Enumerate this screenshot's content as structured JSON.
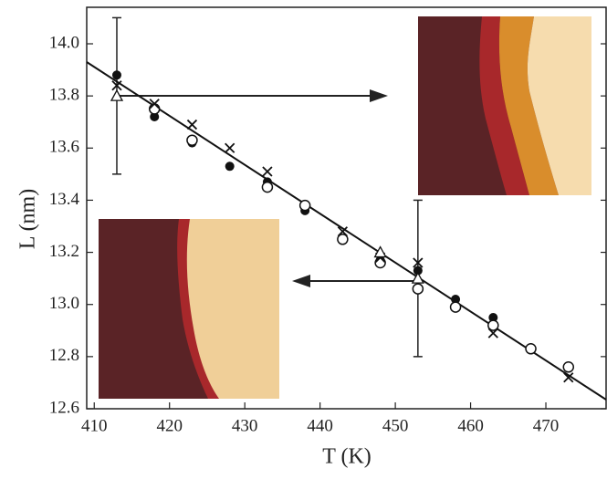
{
  "chart_data": {
    "type": "scatter",
    "x_label": "T (K)",
    "y_label": "L (nm)",
    "xlim": [
      409,
      478
    ],
    "ylim": [
      12.6,
      14.14
    ],
    "xticks": [
      410,
      420,
      430,
      440,
      450,
      460,
      470
    ],
    "yticks": [
      12.6,
      12.8,
      {
        "value": 13,
        "label": "13.0"
      },
      13.2,
      13.4,
      13.6,
      13.8,
      {
        "value": 14,
        "label": "14.0"
      }
    ],
    "series": [
      {
        "marker": "line",
        "color": "#111",
        "x": [
          409,
          478
        ],
        "values": [
          13.93,
          12.635
        ]
      },
      {
        "marker": "filled-circle",
        "color": "#111",
        "x": [
          413,
          418,
          423,
          428,
          433,
          438,
          443,
          448,
          453,
          458,
          463
        ],
        "values": [
          13.88,
          13.72,
          13.62,
          13.53,
          13.47,
          13.36,
          13.25,
          13.17,
          13.13,
          13.02,
          12.95
        ]
      },
      {
        "marker": "open-circle",
        "color": "#111",
        "x": [
          418,
          423,
          433,
          438,
          443,
          448,
          453,
          458,
          463,
          468,
          473
        ],
        "values": [
          13.75,
          13.63,
          13.45,
          13.38,
          13.25,
          13.16,
          13.06,
          12.99,
          12.92,
          12.83,
          12.76
        ]
      },
      {
        "marker": "cross",
        "color": "#111",
        "x": [
          413,
          418,
          423,
          428,
          433,
          443,
          448,
          453,
          463,
          473
        ],
        "values": [
          13.84,
          13.77,
          13.69,
          13.6,
          13.51,
          13.28,
          13.18,
          13.16,
          12.89,
          12.72
        ]
      },
      {
        "marker": "open-triangle",
        "color": "#111",
        "x": [
          413,
          448,
          453
        ],
        "values": [
          13.8,
          13.2,
          13.1
        ]
      }
    ],
    "errorbars": [
      {
        "x": 413,
        "y": 13.8,
        "err": 0.3
      },
      {
        "x": 453,
        "y": 13.1,
        "err": 0.3
      }
    ]
  }
}
